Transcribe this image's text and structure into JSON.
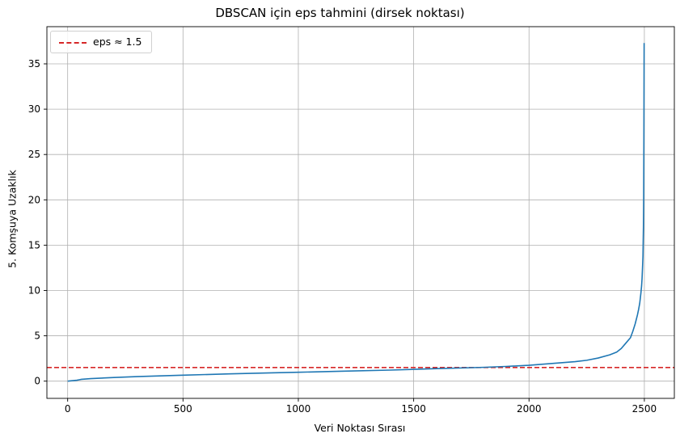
{
  "chart_data": {
    "type": "line",
    "title": "DBSCAN için eps tahmini (dirsek noktası)",
    "xlabel": "Veri Noktası Sırası",
    "ylabel": "5. Komşuya Uzaklık",
    "xlim": [
      -90,
      2630
    ],
    "ylim": [
      -1.9,
      39.1
    ],
    "xticks": [
      0,
      500,
      1000,
      1500,
      2000,
      2500
    ],
    "yticks": [
      0,
      5,
      10,
      15,
      20,
      25,
      30,
      35
    ],
    "grid": true,
    "legend_position": "top-left",
    "series": [
      {
        "color": "#1f77b4",
        "x": [
          0,
          40,
          50,
          60,
          100,
          200,
          300,
          400,
          500,
          700,
          900,
          1000,
          1200,
          1400,
          1600,
          1800,
          1900,
          2000,
          2050,
          2100,
          2200,
          2250,
          2300,
          2350,
          2380,
          2400,
          2420,
          2440,
          2450,
          2460,
          2470,
          2475,
          2480,
          2485,
          2488,
          2490,
          2492,
          2494,
          2495,
          2496,
          2497,
          2498,
          2499
        ],
        "y": [
          0.0,
          0.1,
          0.15,
          0.2,
          0.28,
          0.4,
          0.5,
          0.58,
          0.66,
          0.8,
          0.92,
          0.98,
          1.1,
          1.22,
          1.38,
          1.52,
          1.62,
          1.75,
          1.85,
          1.95,
          2.15,
          2.3,
          2.55,
          2.9,
          3.2,
          3.6,
          4.2,
          4.8,
          5.5,
          6.3,
          7.3,
          7.9,
          8.6,
          9.7,
          10.5,
          11.3,
          12.5,
          13.8,
          15.5,
          17.0,
          20.0,
          27.0,
          37.3
        ]
      }
    ],
    "hline": {
      "y": 1.5,
      "label": "eps ≈ 1.5",
      "color": "#d62728",
      "style": "dashed"
    }
  }
}
